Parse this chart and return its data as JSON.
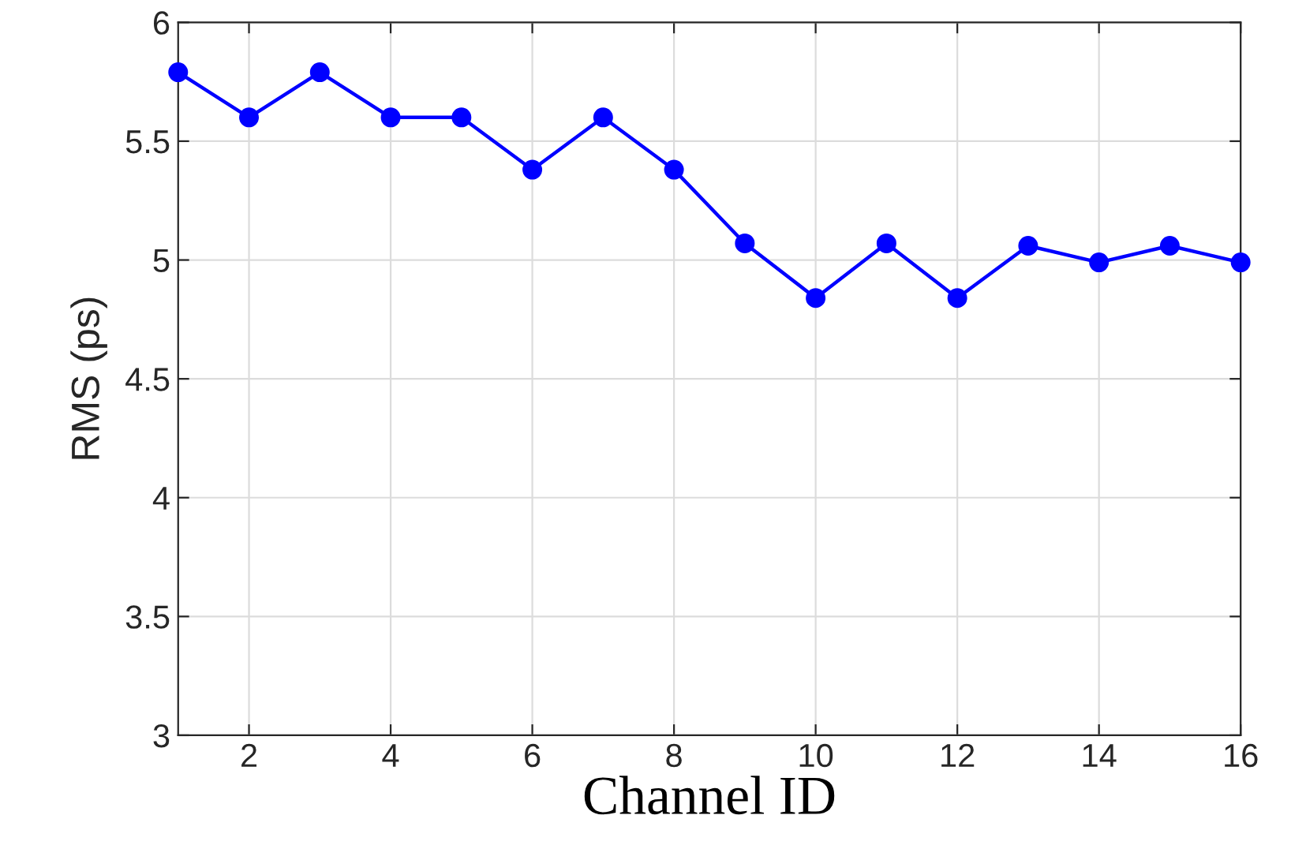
{
  "chart_data": {
    "type": "line",
    "xlabel": "Channel ID",
    "ylabel": "RMS (ps)",
    "x": [
      1,
      2,
      3,
      4,
      5,
      6,
      7,
      8,
      9,
      10,
      11,
      12,
      13,
      14,
      15,
      16
    ],
    "series": [
      {
        "color": "#0000ff",
        "values": [
          5.79,
          5.6,
          5.79,
          5.6,
          5.6,
          5.38,
          5.6,
          5.38,
          5.07,
          4.84,
          5.07,
          4.84,
          5.06,
          4.99,
          5.06,
          4.99
        ]
      }
    ],
    "xlim": [
      1,
      16
    ],
    "xticks": [
      2,
      4,
      6,
      8,
      10,
      12,
      14,
      16
    ],
    "ylim": [
      3,
      6
    ],
    "yticks": [
      3,
      3.5,
      4,
      4.5,
      5,
      5.5,
      6
    ],
    "grid": true,
    "marker": "circle",
    "line_style": "solid"
  }
}
